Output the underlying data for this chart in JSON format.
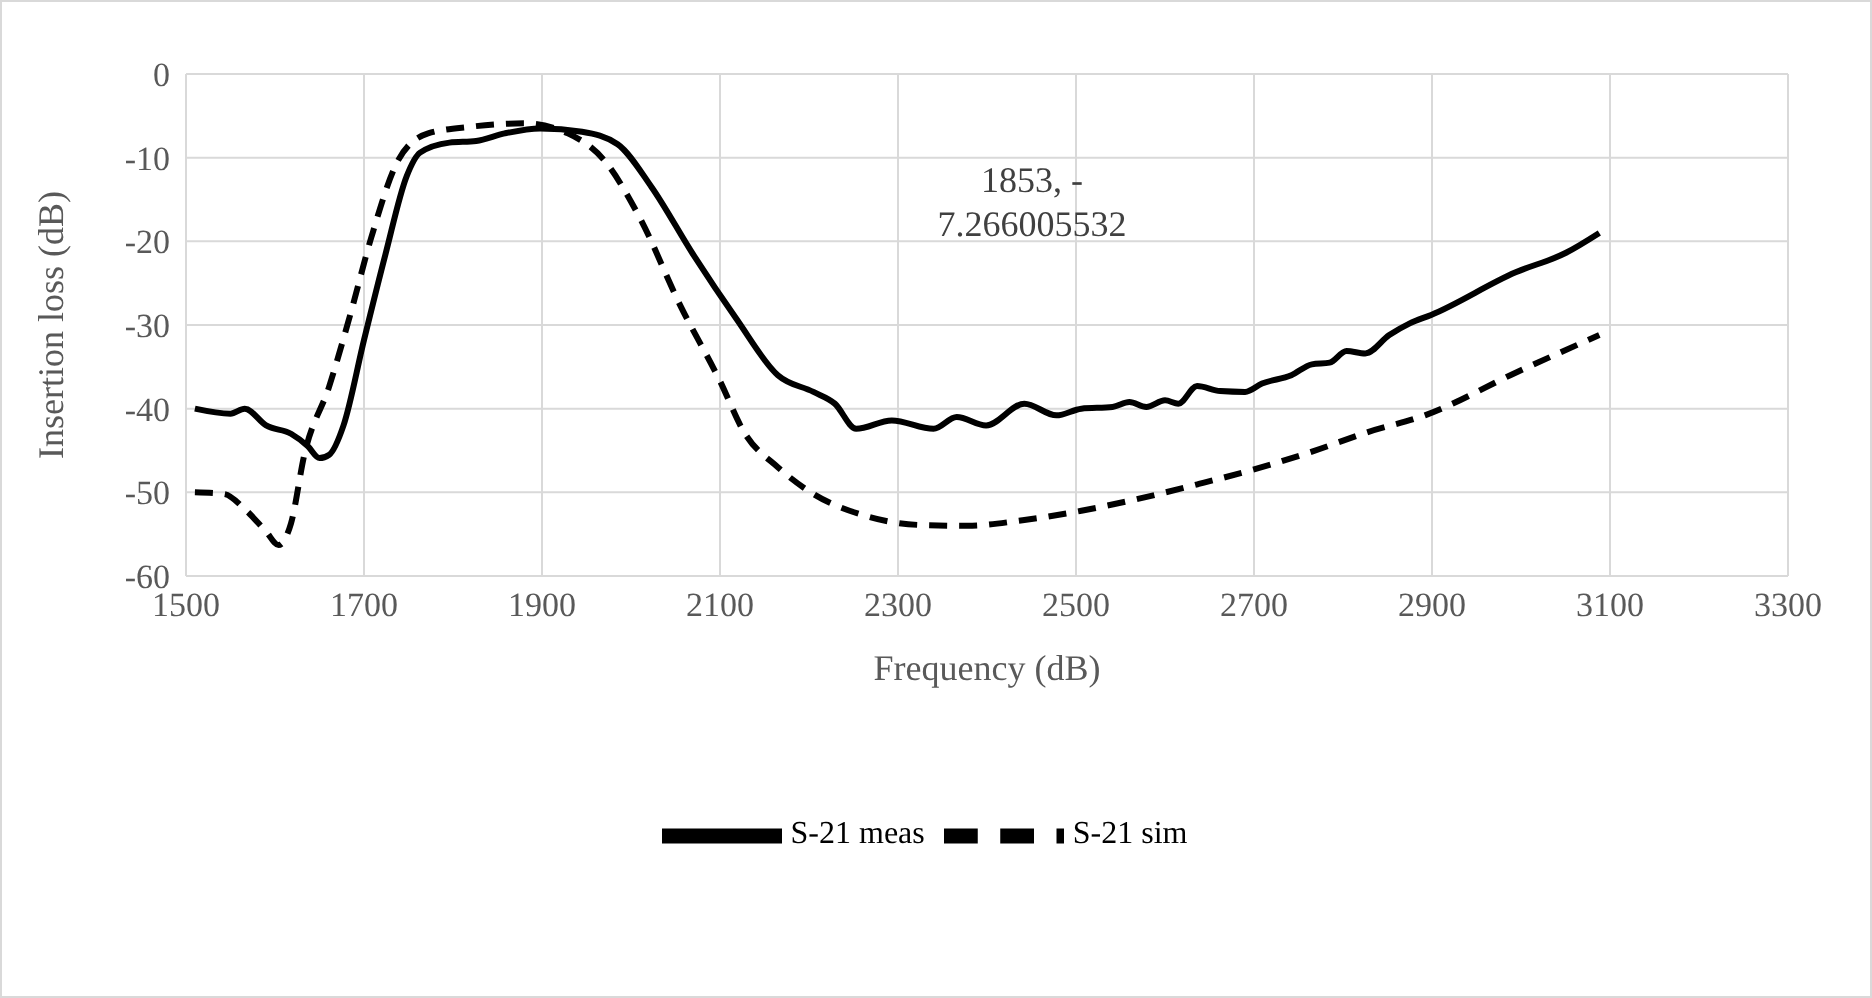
{
  "chart_data": {
    "type": "line",
    "xlabel": "Frequency (dB)",
    "ylabel": "Insertion loss (dB)",
    "xlim": [
      1500,
      3300
    ],
    "xticks": [
      1500,
      1700,
      1900,
      2100,
      2300,
      2500,
      2700,
      2900,
      3100,
      3300
    ],
    "ylim": [
      -60,
      0
    ],
    "yticks": [
      -60,
      -50,
      -40,
      -30,
      -20,
      -10,
      0
    ],
    "grid": true,
    "legend": "bottom",
    "marker": "none",
    "annotations": [
      "1853, -\n7.266005532"
    ],
    "series": [
      {
        "name": "S-21 meas",
        "color": "#000000",
        "line_style": "solid",
        "x": [
          1510,
          1550,
          1566,
          1590,
          1618,
          1637,
          1650,
          1661,
          1677,
          1700,
          1724,
          1748,
          1763,
          1796,
          1826,
          1858,
          1898,
          1945,
          1985,
          2023,
          2070,
          2118,
          2165,
          2205,
          2229,
          2253,
          2293,
          2340,
          2366,
          2399,
          2442,
          2478,
          2506,
          2541,
          2560,
          2579,
          2600,
          2615,
          2636,
          2662,
          2690,
          2709,
          2742,
          2765,
          2785,
          2804,
          2825,
          2852,
          2875,
          2899,
          2994,
          3050,
          3088
        ],
        "values": [
          -40,
          -40.6,
          -40,
          -42,
          -43,
          -44.5,
          -45.9,
          -45.5,
          -42,
          -31.8,
          -21.6,
          -12.2,
          -9.4,
          -8.2,
          -8,
          -7.1,
          -6.5,
          -6.9,
          -8.4,
          -13.5,
          -21.6,
          -29.2,
          -36,
          -38,
          -39.4,
          -42.4,
          -41.4,
          -42.4,
          -41,
          -42,
          -39.4,
          -40.8,
          -40,
          -39.8,
          -39.2,
          -39.8,
          -39,
          -39.4,
          -37.3,
          -37.9,
          -38,
          -37,
          -36,
          -34.7,
          -34.5,
          -33.1,
          -33.4,
          -31.2,
          -29.8,
          -28.8,
          -23.7,
          -21.4,
          -19
        ]
      },
      {
        "name": "S-21 sim",
        "color": "#000000",
        "line_style": "dashed",
        "x": [
          1510,
          1543,
          1566,
          1590,
          1604,
          1618,
          1633,
          1661,
          1685,
          1708,
          1739,
          1772,
          1820,
          1881,
          1929,
          1969,
          2009,
          2056,
          2100,
          2127,
          2165,
          2205,
          2260,
          2324,
          2378,
          2442,
          2506,
          2577,
          2638,
          2702,
          2766,
          2828,
          2892,
          2994,
          3088
        ],
        "values": [
          -50,
          -50.2,
          -52,
          -54.7,
          -56.3,
          -53.7,
          -45.5,
          -37.3,
          -28.6,
          -19.6,
          -10.2,
          -7.1,
          -6.3,
          -5.9,
          -7.1,
          -10.2,
          -17,
          -27.8,
          -36.7,
          -42.8,
          -47,
          -50.2,
          -52.7,
          -53.9,
          -54,
          -53.3,
          -52.2,
          -50.6,
          -49,
          -47.2,
          -45.1,
          -42.8,
          -40.8,
          -35.7,
          -31.2
        ]
      }
    ]
  }
}
